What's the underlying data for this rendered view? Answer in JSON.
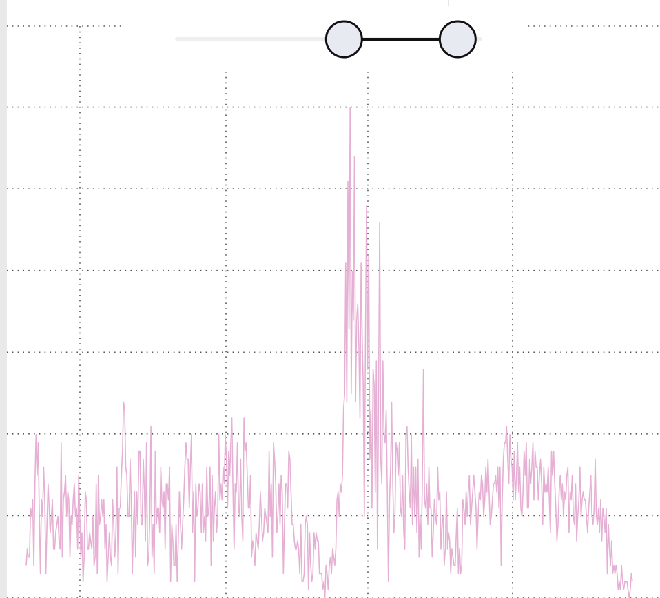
{
  "toolbar": {
    "tabs": [
      {
        "label": ""
      },
      {
        "label": ""
      }
    ]
  },
  "range_slider": {
    "min_handle": 0.55,
    "max_handle": 0.92,
    "handle_fill": "#e8eaf2",
    "handle_stroke": "#111111",
    "track_color": "#eeeeee"
  },
  "chart_data": {
    "type": "line",
    "title": "",
    "xlabel": "",
    "ylabel": "",
    "grid": true,
    "legend": "none",
    "xlim": [
      0,
      1
    ],
    "ylim": [
      0,
      7
    ],
    "series_color": "#e6b0d4",
    "grid_color": "#555555",
    "series": [
      {
        "name": "",
        "y": [
          0.4,
          0.6,
          0.5,
          0.5,
          1.1,
          1.0,
          1.2,
          0.4,
          1.4,
          2.0,
          1.5,
          1.9,
          1.0,
          0.3,
          1.2,
          1.0,
          1.6,
          1.2,
          0.3,
          0.9,
          1.4,
          1.1,
          0.8,
          1.0,
          1.2,
          0.6,
          0.6,
          0.8,
          0.9,
          1.0,
          0.7,
          0.6,
          1.9,
          0.5,
          1.2,
          1.3,
          1.5,
          1.0,
          1.3,
          1.2,
          0.5,
          1.0,
          0.9,
          1.2,
          1.4,
          1.0,
          1.1,
          0.6,
          1.5,
          1.0,
          0.5,
          0.8,
          0.2,
          0.5,
          1.3,
          1.2,
          0.6,
          0.6,
          0.8,
          0.7,
          0.6,
          1.0,
          0.4,
          0.5,
          1.4,
          0.3,
          1.5,
          0.9,
          1.0,
          1.2,
          1.0,
          1.2,
          0.6,
          0.9,
          0.2,
          0.5,
          0.8,
          0.5,
          0.4,
          1.2,
          0.9,
          0.5,
          0.8,
          1.6,
          0.3,
          1.1,
          1.1,
          1.5,
          1.8,
          2.4,
          2.3,
          1.6,
          1.5,
          1.0,
          1.0,
          1.7,
          1.2,
          0.3,
          0.9,
          1.3,
          0.5,
          1.3,
          0.9,
          1.8,
          1.8,
          0.9,
          0.9,
          1.7,
          1.3,
          0.7,
          1.9,
          0.4,
          0.5,
          1.0,
          2.1,
          0.5,
          0.9,
          0.3,
          1.8,
          0.9,
          1.1,
          1.1,
          0.8,
          1.6,
          1.2,
          1.1,
          1.3,
          0.6,
          1.4,
          1.4,
          1.2,
          1.6,
          0.2,
          0.9,
          0.7,
          0.4,
          0.4,
          0.9,
          0.2,
          0.7,
          1.3,
          0.9,
          0.6,
          0.9,
          1.2,
          1.6,
          1.9,
          1.7,
          1.7,
          1.1,
          1.6,
          2.0,
          0.8,
          1.3,
          0.2,
          1.4,
          1.0,
          1.1,
          1.4,
          1.3,
          0.8,
          1.4,
          0.8,
          1.0,
          0.7,
          1.6,
          1.0,
          1.1,
          1.6,
          0.4,
          1.5,
          0.7,
          1.1,
          1.3,
          0.8,
          1.0,
          2.0,
          1.2,
          1.4,
          1.2,
          1.6,
          1.4,
          2.0,
          1.7,
          1.1,
          1.8,
          1.5,
          1.9,
          2.2,
          1.3,
          0.6,
          1.4,
          1.3,
          1.9,
          1.1,
          1.0,
          1.7,
          1.0,
          0.7,
          2.2,
          1.8,
          1.9,
          1.5,
          1.1,
          1.1,
          1.5,
          0.5,
          0.7,
          0.6,
          0.4,
          0.8,
          0.7,
          0.6,
          0.9,
          1.3,
          1.0,
          0.7,
          0.8,
          1.1,
          1.0,
          0.9,
          0.8,
          1.8,
          1.0,
          1.4,
          0.5,
          1.9,
          1.7,
          1.4,
          0.8,
          1.0,
          1.4,
          0.9,
          1.5,
          1.3,
          0.3,
          0.9,
          1.4,
          1.4,
          1.1,
          1.8,
          1.7,
          1.3,
          0.9,
          0.9,
          0.7,
          0.6,
          0.6,
          0.7,
          0.6,
          0.3,
          0.9,
          0.2,
          0.2,
          0.3,
          0.9,
          1.0,
          0.9,
          0.1,
          0.8,
          0.4,
          0.2,
          0.3,
          0.8,
          0.6,
          0.8,
          0.7,
          0.7,
          0.3,
          0.3,
          0.3,
          0.1,
          0.2,
          0.0,
          0.4,
          0.3,
          0.1,
          0.4,
          0.5,
          0.3,
          0.6,
          0.5,
          0.4,
          0.6,
          1.2,
          1.3,
          1.0,
          1.4,
          1.3,
          1.5,
          2.3,
          2.5,
          4.1,
          2.4,
          5.1,
          3.3,
          6.0,
          2.5,
          4.0,
          3.4,
          5.4,
          2.4,
          3.4,
          3.6,
          3.1,
          2.2,
          4.1,
          3.2,
          2.6,
          1.0,
          3.1,
          4.8,
          2.8,
          4.2,
          1.7,
          2.3,
          1.1,
          2.8,
          2.6,
          1.3,
          2.9,
          0.6,
          2.5,
          4.6,
          1.7,
          1.4,
          2.9,
          2.0,
          1.9,
          2.3,
          1.3,
          0.2,
          1.2,
          1.6,
          2.4,
          1.4,
          0.8,
          1.0,
          1.9,
          1.8,
          1.5,
          1.9,
          1.1,
          1.0,
          1.5,
          0.8,
          0.6,
          2.0,
          2.1,
          1.6,
          1.3,
          1.1,
          2.0,
          0.9,
          1.6,
          1.0,
          1.6,
          0.8,
          1.7,
          0.5,
          1.0,
          0.6,
          1.4,
          2.8,
          1.2,
          1.1,
          1.4,
          0.9,
          1.6,
          1.1,
          1.1,
          0.5,
          0.8,
          1.2,
          1.0,
          0.9,
          1.6,
          1.2,
          1.3,
          0.6,
          0.9,
          1.0,
          0.4,
          0.6,
          1.3,
          0.6,
          0.8,
          0.7,
          0.3,
          0.6,
          0.5,
          0.4,
          0.4,
          0.8,
          1.1,
          0.3,
          0.6,
          0.3,
          0.4,
          1.2,
          1.1,
          0.9,
          1.3,
          1.0,
          1.3,
          1.5,
          0.9,
          1.1,
          1.3,
          1.5,
          1.3,
          1.1,
          0.6,
          1.0,
          1.3,
          1.2,
          1.5,
          1.4,
          1.0,
          1.2,
          1.6,
          1.3,
          1.7,
          1.3,
          0.9,
          1.0,
          1.2,
          1.4,
          1.4,
          1.5,
          1.3,
          1.6,
          1.1,
          1.6,
          0.4,
          1.2,
          1.7,
          1.9,
          1.9,
          2.1,
          1.7,
          1.4,
          2.0,
          1.7,
          1.6,
          1.2,
          1.8,
          1.2,
          1.5,
          1.9,
          1.3,
          1.6,
          1.1,
          1.0,
          1.3,
          1.8,
          1.5,
          1.9,
          1.1,
          1.1,
          1.7,
          1.4,
          1.6,
          1.9,
          1.2,
          1.8,
          1.6,
          1.6,
          1.2,
          1.5,
          1.7,
          1.4,
          0.9,
          1.6,
          1.3,
          1.4,
          1.3,
          1.6,
          1.2,
          0.8,
          1.8,
          1.5,
          1.8,
          1.4,
          1.1,
          0.7,
          0.9,
          1.3,
          1.5,
          1.2,
          1.4,
          1.0,
          1.3,
          1.2,
          1.5,
          1.6,
          0.8,
          1.3,
          1.2,
          1.5,
          1.0,
          0.9,
          1.4,
          0.7,
          1.0,
          1.2,
          1.6,
          1.0,
          1.2,
          1.3,
          1.2,
          1.2,
          1.0,
          0.8,
          1.1,
          1.3,
          1.5,
          1.0,
          0.9,
          1.1,
          1.7,
          1.0,
          0.9,
          1.1,
          0.8,
          1.2,
          0.7,
          1.1,
          1.0,
          0.8,
          1.1,
          0.3,
          0.9,
          0.6,
          0.4,
          0.7,
          0.3,
          0.4,
          0.3,
          0.4,
          0.3,
          0.1,
          0.2,
          0.1,
          0.4,
          0.2,
          0.1,
          0.2,
          0.2,
          0.2,
          0.1,
          0.0,
          0.1,
          0.3,
          0.2
        ]
      }
    ]
  }
}
